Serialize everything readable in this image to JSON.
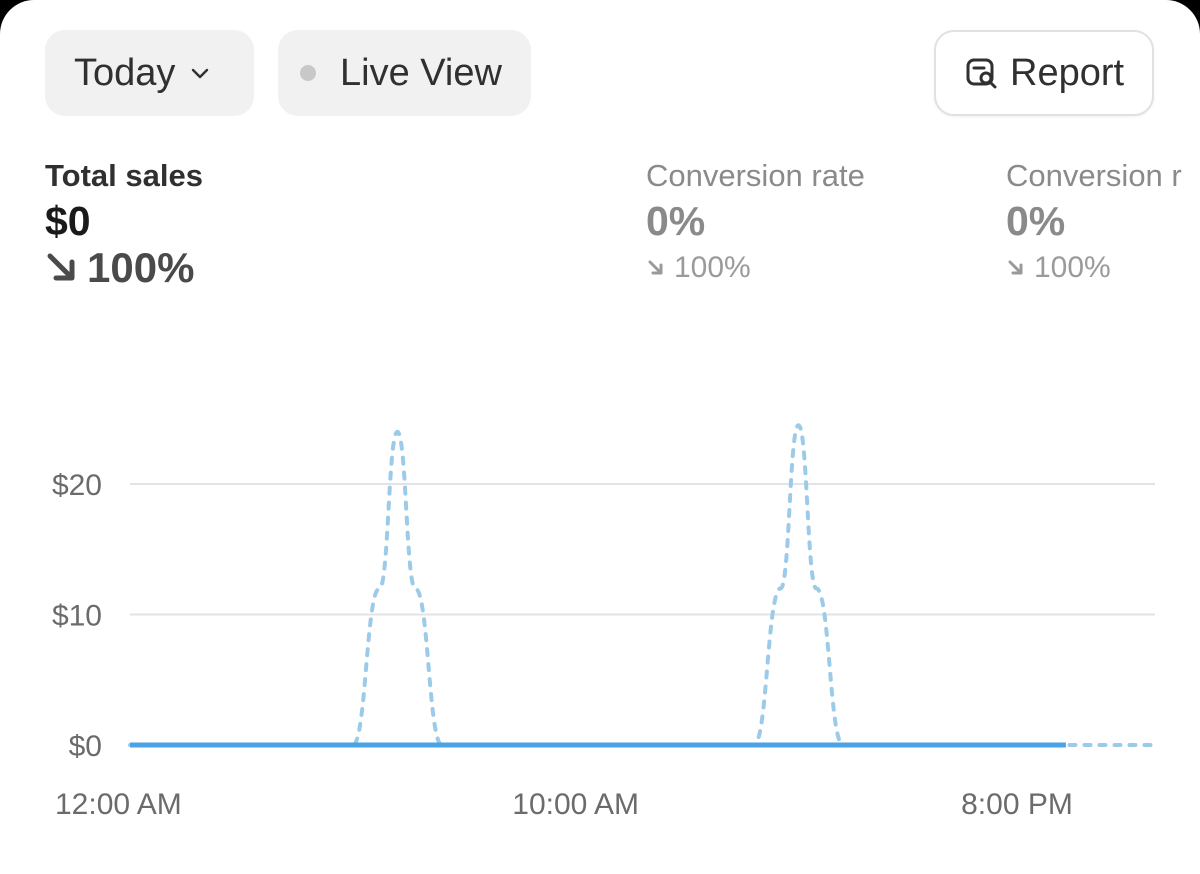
{
  "toolbar": {
    "date_range_label": "Today",
    "live_view_label": "Live View",
    "report_label": "Report"
  },
  "metrics": [
    {
      "label": "Total sales",
      "value": "$0",
      "change": "100%",
      "direction": "down"
    },
    {
      "label": "Conversion rate",
      "value": "0%",
      "change": "100%",
      "direction": "down"
    },
    {
      "label": "Conversion r",
      "value": "0%",
      "change": "100%",
      "direction": "down"
    }
  ],
  "colors": {
    "series_current": "#4aa3e6",
    "series_previous": "#9ccbe9",
    "grid": "#e3e3e3"
  },
  "chart_data": {
    "type": "line",
    "x_tick_labels": [
      "12:00 AM",
      "10:00 AM",
      "8:00 PM"
    ],
    "y_tick_labels": [
      "$0",
      "$10",
      "$20"
    ],
    "ylim": [
      0,
      25
    ],
    "xlim": [
      0,
      23
    ],
    "grid": true,
    "series": [
      {
        "style": "solid",
        "x": [
          0,
          21
        ],
        "y": [
          0,
          0
        ]
      },
      {
        "style": "dotted",
        "x": [
          0,
          5,
          5.6,
          6.0,
          6.4,
          7.0,
          14,
          14.6,
          15.0,
          15.4,
          16.0,
          23
        ],
        "y": [
          0,
          0,
          12,
          24,
          12,
          0,
          0,
          12,
          24.5,
          12,
          0,
          0
        ]
      }
    ]
  }
}
